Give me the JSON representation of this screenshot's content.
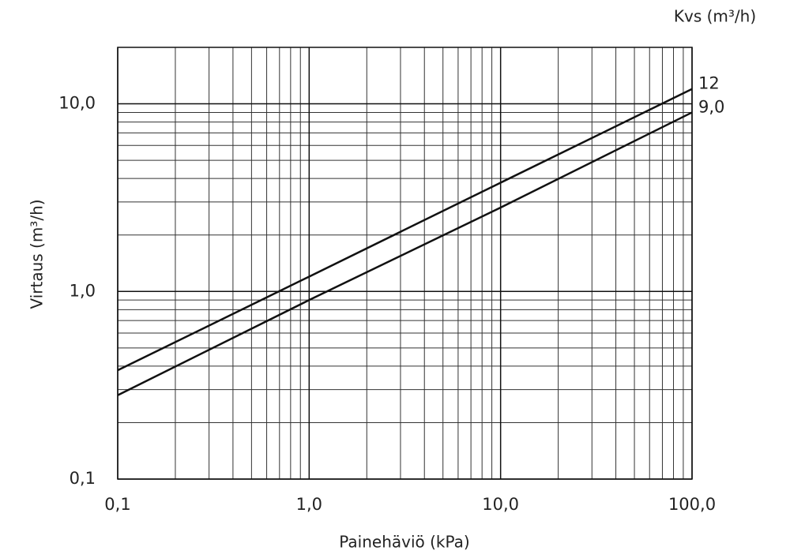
{
  "chart_data": {
    "type": "line",
    "x_label": "Painehäviö (kPa)",
    "y_label": "Virtaus (m³/h)",
    "legend_title": "Kvs  (m³/h)",
    "x": [
      0.1,
      1,
      10,
      100
    ],
    "series": [
      {
        "name": "12",
        "color": "#111111",
        "values": [
          0.38,
          1.2,
          3.8,
          12
        ]
      },
      {
        "name": "9,0",
        "color": "#111111",
        "values": [
          0.28,
          0.9,
          2.8,
          9
        ]
      }
    ],
    "xlim": [
      0.1,
      100
    ],
    "ylim": [
      0.1,
      20
    ],
    "xticks": [
      {
        "value": 0.1,
        "label": "0,1"
      },
      {
        "value": 1,
        "label": "1,0"
      },
      {
        "value": 10,
        "label": "10,0"
      },
      {
        "value": 100,
        "label": "100,0"
      }
    ],
    "yticks": [
      {
        "value": 0.1,
        "label": "0,1"
      },
      {
        "value": 1,
        "label": "1,0"
      },
      {
        "value": 10,
        "label": "10,0"
      }
    ],
    "log_x": true,
    "log_y": true,
    "grid": true,
    "minor_grid": true
  }
}
